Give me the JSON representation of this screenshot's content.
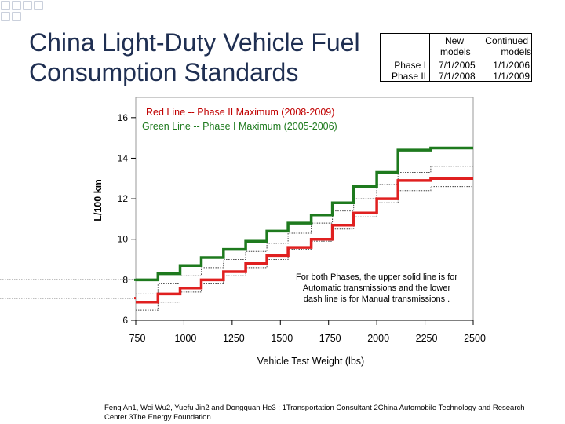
{
  "slide": {
    "title_line1": "China Light-Duty Vehicle Fuel",
    "title_line2": "Consumption Standards"
  },
  "phase_table": {
    "header_new": "New",
    "header_continued": "Continued",
    "header_models_1": "models",
    "header_models_2": "models",
    "rows": [
      {
        "label": "Phase I",
        "new": "7/1/2005",
        "continued": "1/1/2006"
      },
      {
        "label": "Phase II",
        "new": "7/1/2008",
        "continued": "1/1/2009"
      }
    ]
  },
  "colors": {
    "phase1": "#1e7a1e",
    "phase2": "#e02020",
    "title": "#1f2f52"
  },
  "chart_data": {
    "type": "line",
    "xlabel": "Vehicle Test Weight (lbs)",
    "ylabel": "L/100 km",
    "xlim": [
      750,
      2500
    ],
    "ylim": [
      6,
      17
    ],
    "xticks": [
      750,
      1000,
      1250,
      1500,
      1750,
      2000,
      2250,
      2500
    ],
    "yticks": [
      6,
      8,
      10,
      12,
      14,
      16
    ],
    "grid": false,
    "legend_lines": [
      "Red Line -- Phase II Maximum (2008-2009)",
      "Green Line -- Phase I Maximum (2005-2006)"
    ],
    "annotation": [
      "For both Phases, the upper solid line is for",
      "Automatic transmissions and the lower",
      "dash line is for Manual transmissions ."
    ],
    "x_breaks": [
      750,
      865,
      980,
      1090,
      1205,
      1320,
      1430,
      1540,
      1660,
      1770,
      1880,
      2000,
      2110,
      2280,
      2500
    ],
    "series": [
      {
        "name": "Phase I Automatic",
        "color": "#1e7a1e",
        "style": "solid",
        "values": [
          8.0,
          8.3,
          8.7,
          9.1,
          9.5,
          9.9,
          10.4,
          10.8,
          11.2,
          11.8,
          12.6,
          13.3,
          14.4,
          14.5
        ]
      },
      {
        "name": "Phase I Manual",
        "color": "#444444",
        "style": "dashed",
        "values": [
          7.3,
          7.8,
          8.2,
          8.6,
          9.0,
          9.4,
          9.8,
          10.3,
          10.8,
          11.4,
          12.0,
          12.7,
          13.3,
          13.6
        ]
      },
      {
        "name": "Phase II Automatic",
        "color": "#e02020",
        "style": "solid",
        "values": [
          6.9,
          7.3,
          7.6,
          8.0,
          8.4,
          8.8,
          9.2,
          9.6,
          10.0,
          10.7,
          11.3,
          12.0,
          12.9,
          13.0
        ]
      },
      {
        "name": "Phase II Manual",
        "color": "#444444",
        "style": "dashed",
        "values": [
          6.5,
          6.9,
          7.4,
          7.8,
          8.2,
          8.6,
          9.0,
          9.5,
          9.9,
          10.5,
          11.1,
          11.8,
          12.4,
          12.6
        ]
      }
    ],
    "pre_range_lines": [
      {
        "series": "Phase I Automatic",
        "value": 8.0
      },
      {
        "series": "Phase II Automatic",
        "value": 7.1
      }
    ]
  },
  "footnote": "Feng An1, Wei Wu2, Yuefu Jin2 and Dongquan He3 ; 1Transportation Consultant 2China Automobile Technology and Research Center 3The Energy Foundation"
}
